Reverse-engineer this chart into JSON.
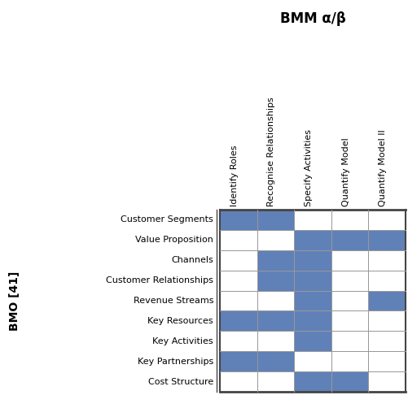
{
  "title": "BMM α/β",
  "col_labels": [
    "Identify Roles",
    "Recognise Relationships",
    "Specify Activities",
    "Quantify Model",
    "Quantify Model II"
  ],
  "row_labels": [
    "Customer Segments",
    "Value Proposition",
    "Channels",
    "Customer Relationships",
    "Revenue Streams",
    "Key Resources",
    "Key Activities",
    "Key Partnerships",
    "Cost Structure"
  ],
  "row_group_label": "BMO [41]",
  "filled_color": "#6080b8",
  "empty_color": "#ffffff",
  "grid_color": "#999999",
  "thick_line_color": "#444444",
  "cells": [
    [
      1,
      1,
      0,
      0,
      0
    ],
    [
      0,
      0,
      1,
      1,
      1
    ],
    [
      0,
      1,
      1,
      0,
      0
    ],
    [
      0,
      1,
      1,
      0,
      0
    ],
    [
      0,
      0,
      1,
      0,
      1
    ],
    [
      1,
      1,
      1,
      0,
      0
    ],
    [
      0,
      0,
      1,
      0,
      0
    ],
    [
      1,
      1,
      0,
      0,
      0
    ],
    [
      0,
      0,
      1,
      1,
      0
    ]
  ],
  "fig_width": 5.02,
  "fig_height": 4.86,
  "dpi": 100
}
